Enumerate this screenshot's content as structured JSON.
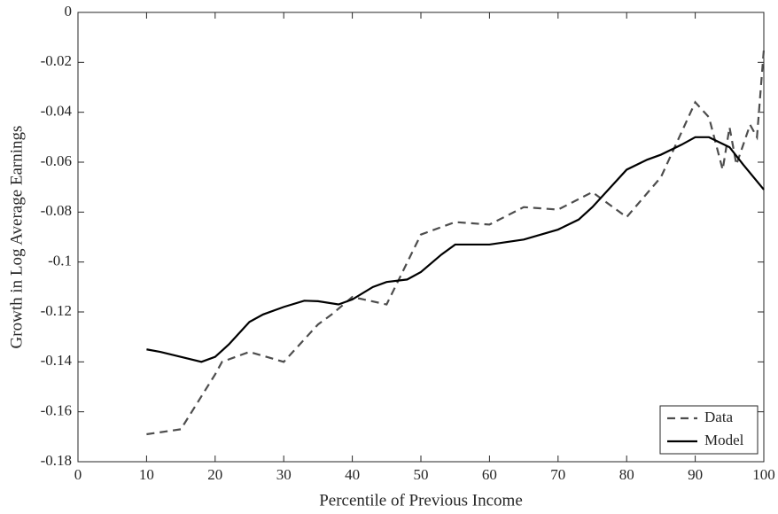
{
  "chart_data": {
    "type": "line",
    "x_label": "Percentile of Previous Income",
    "y_label": "Growth in Log Average Earnings",
    "xlim": [
      0,
      100
    ],
    "xticks": [
      0,
      10,
      20,
      30,
      40,
      50,
      60,
      70,
      80,
      90,
      100
    ],
    "ylim": [
      -0.18,
      0
    ],
    "yticks": [
      -0.18,
      -0.16,
      -0.14,
      -0.12,
      -0.1,
      -0.08,
      -0.06,
      -0.04,
      -0.02,
      0
    ],
    "legend": "lower right",
    "series": [
      {
        "name": "Data",
        "color": "#4d4d4d",
        "linestyle": "dashed",
        "x": [
          10,
          15,
          20,
          21,
          25,
          30,
          35,
          37,
          40,
          45,
          50,
          55,
          60,
          65,
          70,
          75,
          80,
          85,
          90,
          92,
          94,
          95,
          96,
          98,
          99,
          100
        ],
        "values": [
          -0.169,
          -0.167,
          -0.145,
          -0.14,
          -0.136,
          -0.14,
          -0.125,
          -0.121,
          -0.114,
          -0.117,
          -0.089,
          -0.084,
          -0.085,
          -0.078,
          -0.079,
          -0.072,
          -0.082,
          -0.066,
          -0.036,
          -0.042,
          -0.063,
          -0.046,
          -0.061,
          -0.045,
          -0.05,
          -0.015
        ]
      },
      {
        "name": "Model",
        "color": "#000000",
        "linestyle": "solid",
        "x": [
          10,
          12,
          15,
          18,
          20,
          22,
          25,
          27,
          30,
          33,
          35,
          38,
          40,
          43,
          45,
          48,
          50,
          53,
          55,
          60,
          65,
          70,
          73,
          75,
          78,
          80,
          83,
          85,
          88,
          90,
          92,
          95,
          97,
          100
        ],
        "values": [
          -0.135,
          -0.136,
          -0.138,
          -0.14,
          -0.138,
          -0.133,
          -0.124,
          -0.121,
          -0.118,
          -0.1155,
          -0.1157,
          -0.117,
          -0.115,
          -0.11,
          -0.108,
          -0.107,
          -0.104,
          -0.097,
          -0.093,
          -0.093,
          -0.091,
          -0.087,
          -0.083,
          -0.078,
          -0.069,
          -0.063,
          -0.059,
          -0.057,
          -0.053,
          -0.05,
          -0.05,
          -0.054,
          -0.061,
          -0.071
        ]
      }
    ]
  }
}
